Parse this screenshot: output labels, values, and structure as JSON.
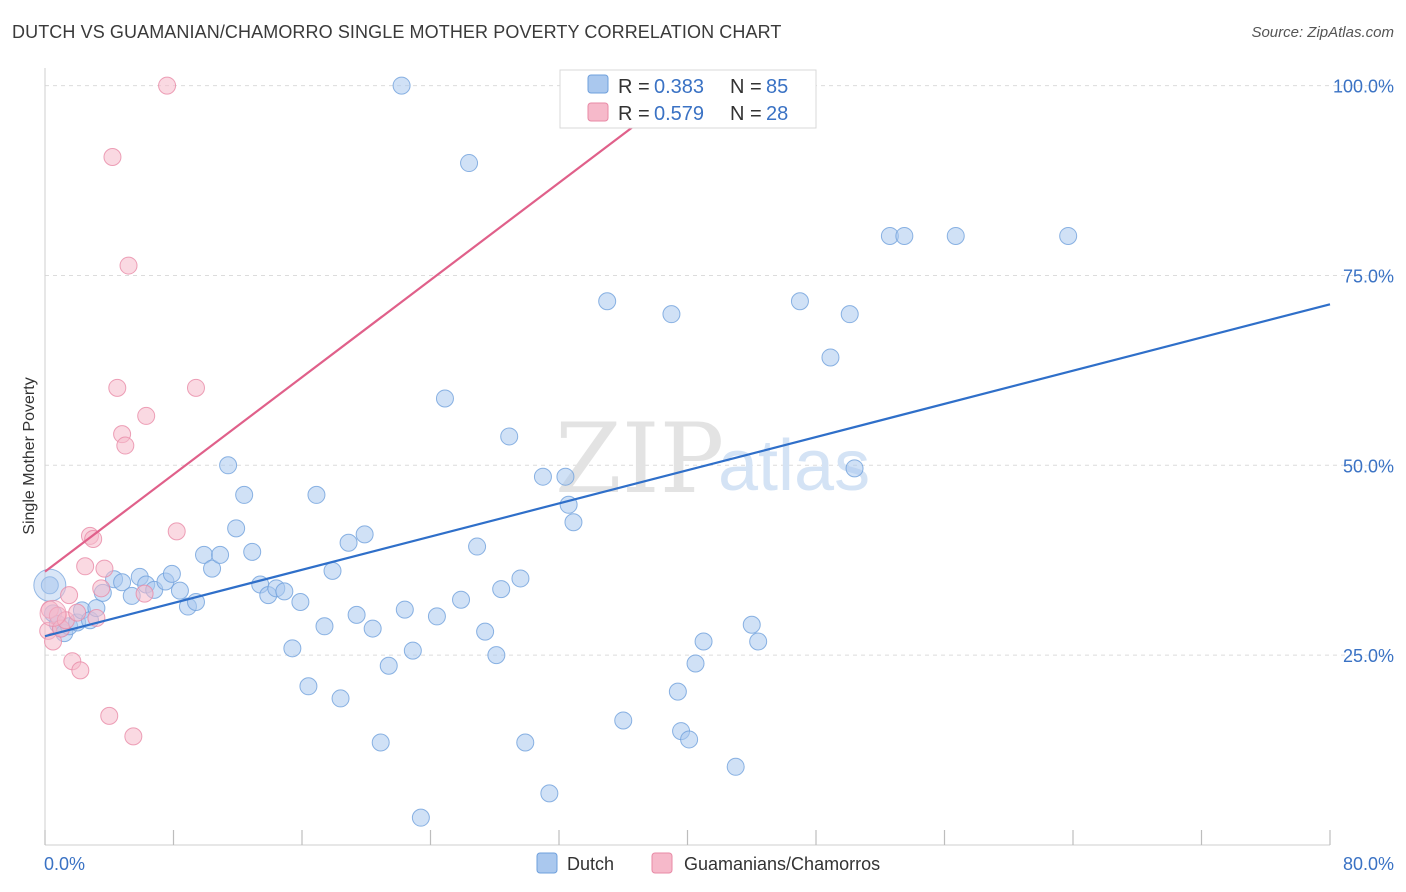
{
  "title": "DUTCH VS GUAMANIAN/CHAMORRO SINGLE MOTHER POVERTY CORRELATION CHART",
  "source": "Source: ZipAtlas.com",
  "watermark": {
    "zip": "ZIP",
    "atlas": "atlas"
  },
  "legend_box": {
    "rows": [
      {
        "r_label": "R =",
        "r_value": "0.383",
        "n_label": "N =",
        "n_value": "85"
      },
      {
        "r_label": "R =",
        "r_value": "0.579",
        "n_label": "N =",
        "n_value": "28"
      }
    ]
  },
  "bottom_legend": [
    "Dutch",
    "Guamanians/Chamorros"
  ],
  "colors": {
    "dutch_fill": "#aac8ee",
    "dutch_stroke": "#6fa0dc",
    "dutch_line": "#2f6fc9",
    "guam_fill": "#f6b9ca",
    "guam_stroke": "#e88aa6",
    "guam_line": "#e0608a",
    "grid": "#dcdcdc",
    "tick_label": "#3a72c4"
  },
  "chart_data": {
    "type": "scatter",
    "title": "DUTCH VS GUAMANIAN/CHAMORRO SINGLE MOTHER POVERTY CORRELATION CHART",
    "xlabel": "",
    "ylabel": "Single Mother Poverty",
    "xlim": [
      0,
      80
    ],
    "ylim": [
      0,
      101
    ],
    "x_tick_labels": [
      "0.0%",
      "80.0%"
    ],
    "y_ticks": [
      25,
      50,
      75,
      100
    ],
    "y_tick_labels": [
      "25.0%",
      "50.0%",
      "75.0%",
      "100.0%"
    ],
    "grid": true,
    "legend_placement": "bottom",
    "series": [
      {
        "name": "Dutch",
        "r": 0.383,
        "n": 85,
        "trend": {
          "x": [
            0,
            80
          ],
          "y": [
            27.5,
            71.2
          ]
        },
        "points": [
          [
            0.3,
            34.2
          ],
          [
            0.5,
            30.5
          ],
          [
            0.8,
            29.1
          ],
          [
            1.0,
            28.5
          ],
          [
            1.2,
            27.9
          ],
          [
            1.5,
            28.8
          ],
          [
            2.0,
            29.3
          ],
          [
            2.3,
            30.9
          ],
          [
            2.8,
            29.6
          ],
          [
            3.2,
            31.2
          ],
          [
            3.6,
            33.2
          ],
          [
            4.3,
            35.0
          ],
          [
            4.8,
            34.6
          ],
          [
            5.4,
            32.8
          ],
          [
            5.9,
            35.3
          ],
          [
            6.3,
            34.3
          ],
          [
            6.8,
            33.6
          ],
          [
            7.5,
            34.7
          ],
          [
            7.9,
            35.7
          ],
          [
            8.4,
            33.5
          ],
          [
            8.9,
            31.4
          ],
          [
            9.4,
            32.0
          ],
          [
            9.9,
            38.2
          ],
          [
            10.4,
            36.4
          ],
          [
            10.9,
            38.2
          ],
          [
            11.4,
            50.0
          ],
          [
            11.9,
            41.7
          ],
          [
            12.4,
            46.1
          ],
          [
            12.9,
            38.6
          ],
          [
            13.4,
            34.3
          ],
          [
            13.9,
            32.9
          ],
          [
            14.4,
            33.8
          ],
          [
            14.9,
            33.4
          ],
          [
            15.4,
            25.9
          ],
          [
            15.9,
            32.0
          ],
          [
            16.4,
            20.9
          ],
          [
            16.9,
            46.1
          ],
          [
            17.4,
            28.8
          ],
          [
            17.9,
            36.1
          ],
          [
            18.4,
            19.3
          ],
          [
            18.9,
            39.8
          ],
          [
            19.4,
            30.3
          ],
          [
            19.9,
            40.9
          ],
          [
            20.4,
            28.5
          ],
          [
            20.9,
            13.5
          ],
          [
            21.4,
            23.6
          ],
          [
            22.4,
            31.0
          ],
          [
            22.9,
            25.6
          ],
          [
            23.4,
            3.6
          ],
          [
            24.4,
            30.1
          ],
          [
            24.9,
            58.8
          ],
          [
            25.9,
            32.3
          ],
          [
            26.4,
            89.8
          ],
          [
            26.9,
            39.3
          ],
          [
            27.4,
            28.1
          ],
          [
            28.1,
            25.0
          ],
          [
            28.4,
            33.7
          ],
          [
            28.9,
            53.8
          ],
          [
            29.6,
            35.1
          ],
          [
            29.9,
            13.5
          ],
          [
            31.0,
            48.5
          ],
          [
            31.4,
            6.8
          ],
          [
            32.4,
            48.5
          ],
          [
            32.6,
            44.8
          ],
          [
            32.9,
            42.5
          ],
          [
            35.0,
            71.6
          ],
          [
            36.0,
            16.4
          ],
          [
            39.0,
            69.9
          ],
          [
            39.4,
            20.2
          ],
          [
            39.6,
            15.0
          ],
          [
            40.1,
            13.9
          ],
          [
            40.5,
            23.9
          ],
          [
            41.0,
            26.8
          ],
          [
            43.0,
            10.3
          ],
          [
            44.0,
            29.0
          ],
          [
            44.4,
            26.8
          ],
          [
            47.0,
            71.6
          ],
          [
            48.9,
            64.2
          ],
          [
            50.1,
            69.9
          ],
          [
            50.4,
            49.6
          ],
          [
            52.6,
            80.2
          ],
          [
            53.5,
            80.2
          ],
          [
            56.7,
            80.2
          ],
          [
            63.7,
            80.2
          ],
          [
            22.2,
            100.0
          ]
        ]
      },
      {
        "name": "Guamanians/Chamorros",
        "r": 0.579,
        "n": 28,
        "trend": {
          "x": [
            0,
            40
          ],
          "y": [
            36.0,
            100.0
          ]
        },
        "points": [
          [
            0.2,
            28.2
          ],
          [
            0.3,
            31.0
          ],
          [
            0.5,
            26.8
          ],
          [
            0.8,
            30.2
          ],
          [
            1.0,
            28.5
          ],
          [
            1.3,
            29.6
          ],
          [
            1.5,
            32.9
          ],
          [
            1.7,
            24.2
          ],
          [
            2.0,
            30.6
          ],
          [
            2.2,
            23.0
          ],
          [
            2.5,
            36.7
          ],
          [
            2.8,
            40.7
          ],
          [
            3.0,
            40.3
          ],
          [
            3.2,
            29.9
          ],
          [
            3.5,
            33.8
          ],
          [
            3.7,
            36.4
          ],
          [
            4.0,
            17.0
          ],
          [
            4.2,
            90.6
          ],
          [
            4.5,
            60.2
          ],
          [
            4.8,
            54.1
          ],
          [
            5.0,
            52.6
          ],
          [
            5.2,
            76.3
          ],
          [
            5.5,
            14.3
          ],
          [
            6.2,
            33.1
          ],
          [
            6.3,
            56.5
          ],
          [
            7.6,
            100.0
          ],
          [
            8.2,
            41.3
          ],
          [
            9.4,
            60.2
          ]
        ]
      }
    ]
  }
}
